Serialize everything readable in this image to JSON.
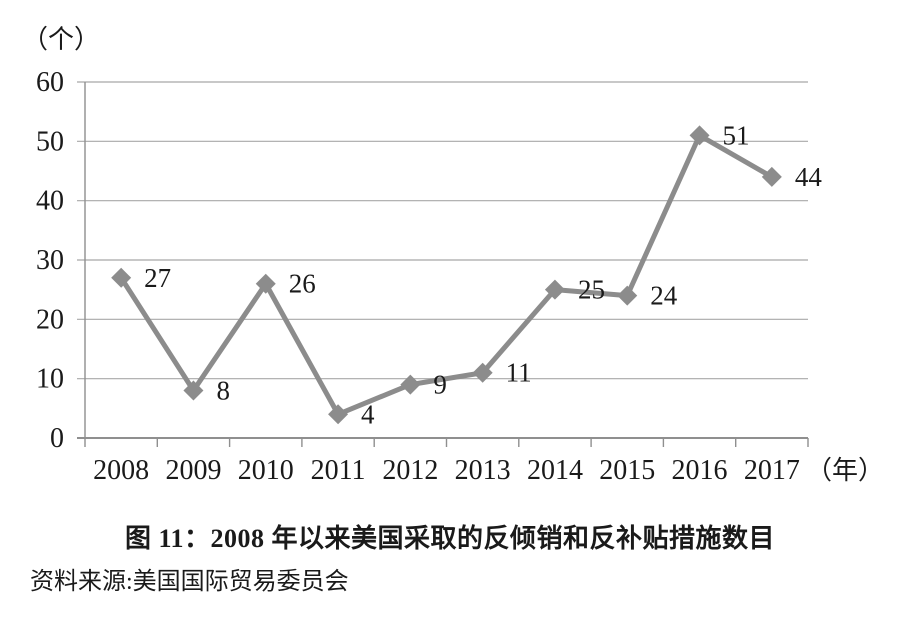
{
  "chart_data": {
    "type": "line",
    "title": "图 11：2008 年以来美国采取的反倾销和反补贴措施数目",
    "source": "资料来源:美国国际贸易委员会",
    "categories": [
      "2008",
      "2009",
      "2010",
      "2011",
      "2012",
      "2013",
      "2014",
      "2015",
      "2016",
      "2017"
    ],
    "series": [
      {
        "name": "反倾销和反补贴措施数目",
        "values": [
          27,
          8,
          26,
          4,
          9,
          11,
          25,
          24,
          51,
          44
        ]
      }
    ],
    "ylabel": "（个）",
    "xlabel": "（年）",
    "ylim": [
      0,
      60
    ],
    "ytick_interval": 10,
    "yticks": [
      0,
      10,
      20,
      30,
      40,
      50,
      60
    ],
    "grid": true,
    "legend_position": "none",
    "data_labels": true,
    "marker": "diamond",
    "colors": {
      "line": "#8c8c8c",
      "marker": "#8c8c8c",
      "gridline": "#a8a8a8",
      "axis": "#8f8f8f",
      "text": "#1a1a1a"
    }
  }
}
